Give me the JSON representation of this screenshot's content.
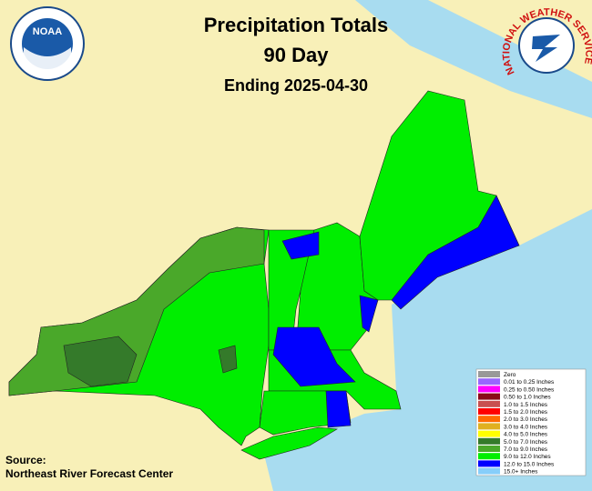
{
  "header": {
    "title": "Precipitation Totals",
    "period": "90 Day",
    "ending": "Ending 2025-04-30"
  },
  "logos": {
    "noaa": "NOAA",
    "nws": "NATIONAL WEATHER SERVICE"
  },
  "legend": [
    {
      "label": "Zero",
      "color": "#999999"
    },
    {
      "label": "0.01 to 0.25 Inches",
      "color": "#9966ff"
    },
    {
      "label": "0.25 to 0.50 Inches",
      "color": "#ff00ff"
    },
    {
      "label": "0.50 to 1.0 Inches",
      "color": "#8b0a1a"
    },
    {
      "label": "1.0 to 1.5 Inches",
      "color": "#c85050"
    },
    {
      "label": "1.5 to 2.0 Inches",
      "color": "#ff0000"
    },
    {
      "label": "2.0 to 3.0 Inches",
      "color": "#ff6a00"
    },
    {
      "label": "3.0 to 4.0 Inches",
      "color": "#e0b020"
    },
    {
      "label": "4.0 to 5.0 Inches",
      "color": "#ffff00"
    },
    {
      "label": "5.0 to 7.0 Inches",
      "color": "#347a2a"
    },
    {
      "label": "7.0 to 9.0 Inches",
      "color": "#4aa82a"
    },
    {
      "label": "9.0 to 12.0 Inches",
      "color": "#00ee00"
    },
    {
      "label": "12.0 to 15.0 Inches",
      "color": "#0000ff"
    },
    {
      "label": "15.0+ Inches",
      "color": "#87cefa"
    }
  ],
  "source": {
    "label": "Source:",
    "name": "Northeast River Forecast Center"
  }
}
